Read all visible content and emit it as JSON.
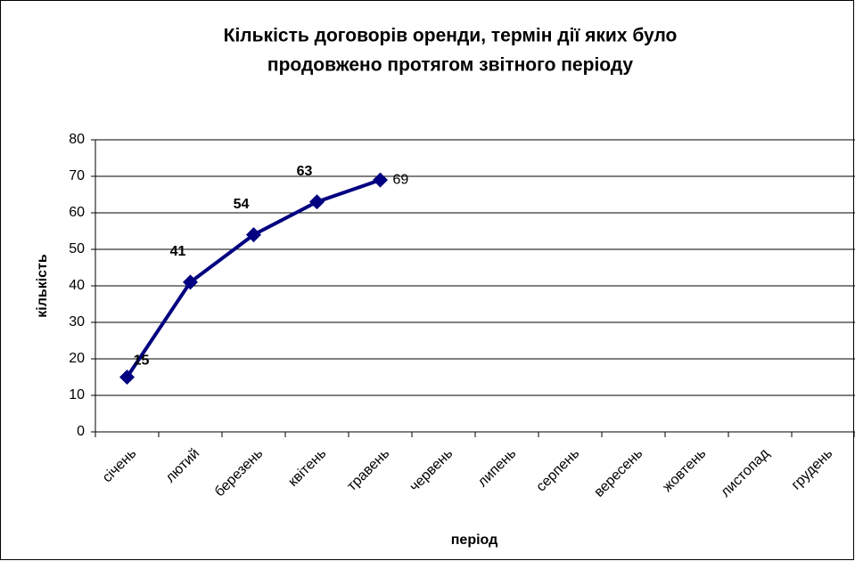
{
  "chart_data": {
    "type": "line",
    "title": [
      "Кількість договорів оренди, термін дії яких було",
      "продовжено протягом звітного періоду"
    ],
    "x_label": "період",
    "y_label": "кількість",
    "categories": [
      "січень",
      "лютий",
      "березень",
      "квітень",
      "травень",
      "червень",
      "липень",
      "серпень",
      "вересень",
      "жовтень",
      "листопад",
      "грудень"
    ],
    "series": [
      {
        "name": "кількість",
        "color": "#000080",
        "values": [
          15,
          41,
          54,
          63,
          69,
          null,
          null,
          null,
          null,
          null,
          null,
          null
        ]
      }
    ],
    "ylim": [
      0,
      80
    ],
    "yticks": [
      0,
      10,
      20,
      30,
      40,
      50,
      60,
      70,
      80
    ],
    "grid": true
  }
}
